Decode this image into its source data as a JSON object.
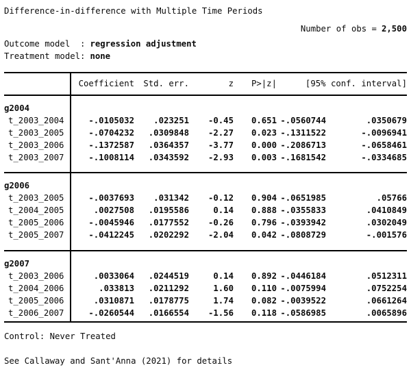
{
  "page": {
    "title": "Difference-in-difference with Multiple Time Periods",
    "stats": {
      "obs_label": "Number of obs =",
      "obs_value": "2,500"
    },
    "models": {
      "outcome_label": "Outcome model  :",
      "outcome_value": "regression adjustment",
      "treatment_label": "Treatment model:",
      "treatment_value": "none"
    }
  },
  "table": {
    "header": {
      "coefficient": "Coefficient",
      "std_err": "Std. err.",
      "z": "z",
      "p": "P>|z|",
      "ci": "[95% conf. interval]"
    },
    "groups": [
      {
        "label": "g2004",
        "rows": [
          {
            "label": "t_2003_2004",
            "coef": "-.0105032",
            "se": ".023251",
            "z": "-0.45",
            "p": "0.651",
            "lo": "-.0560744",
            "hi": ".0350679"
          },
          {
            "label": "t_2003_2005",
            "coef": "-.0704232",
            "se": ".0309848",
            "z": "-2.27",
            "p": "0.023",
            "lo": "-.1311522",
            "hi": "-.0096941"
          },
          {
            "label": "t_2003_2006",
            "coef": "-.1372587",
            "se": ".0364357",
            "z": "-3.77",
            "p": "0.000",
            "lo": "-.2086713",
            "hi": "-.0658461"
          },
          {
            "label": "t_2003_2007",
            "coef": "-.1008114",
            "se": ".0343592",
            "z": "-2.93",
            "p": "0.003",
            "lo": "-.1681542",
            "hi": "-.0334685"
          }
        ]
      },
      {
        "label": "g2006",
        "rows": [
          {
            "label": "t_2003_2005",
            "coef": "-.0037693",
            "se": ".031342",
            "z": "-0.12",
            "p": "0.904",
            "lo": "-.0651985",
            "hi": ".05766"
          },
          {
            "label": "t_2004_2005",
            "coef": ".0027508",
            "se": ".0195586",
            "z": "0.14",
            "p": "0.888",
            "lo": "-.0355833",
            "hi": ".0410849"
          },
          {
            "label": "t_2005_2006",
            "coef": "-.0045946",
            "se": ".0177552",
            "z": "-0.26",
            "p": "0.796",
            "lo": "-.0393942",
            "hi": ".0302049"
          },
          {
            "label": "t_2005_2007",
            "coef": "-.0412245",
            "se": ".0202292",
            "z": "-2.04",
            "p": "0.042",
            "lo": "-.0808729",
            "hi": "-.001576"
          }
        ]
      },
      {
        "label": "g2007",
        "rows": [
          {
            "label": "t_2003_2006",
            "coef": ".0033064",
            "se": ".0244519",
            "z": "0.14",
            "p": "0.892",
            "lo": "-.0446184",
            "hi": ".0512311"
          },
          {
            "label": "t_2004_2006",
            "coef": ".033813",
            "se": ".0211292",
            "z": "1.60",
            "p": "0.110",
            "lo": "-.0075994",
            "hi": ".0752254"
          },
          {
            "label": "t_2005_2006",
            "coef": ".0310871",
            "se": ".0178775",
            "z": "1.74",
            "p": "0.082",
            "lo": "-.0039522",
            "hi": ".0661264"
          },
          {
            "label": "t_2006_2007",
            "coef": "-.0260544",
            "se": ".0166554",
            "z": "-1.56",
            "p": "0.118",
            "lo": "-.0586985",
            "hi": ".0065896"
          }
        ]
      }
    ]
  },
  "footer": {
    "control": "Control: Never Treated",
    "reference": "See Callaway and Sant'Anna (2021) for details"
  },
  "colors": {
    "text": "#0a0a0a",
    "background": "#ffffff",
    "rule": "#000000"
  }
}
